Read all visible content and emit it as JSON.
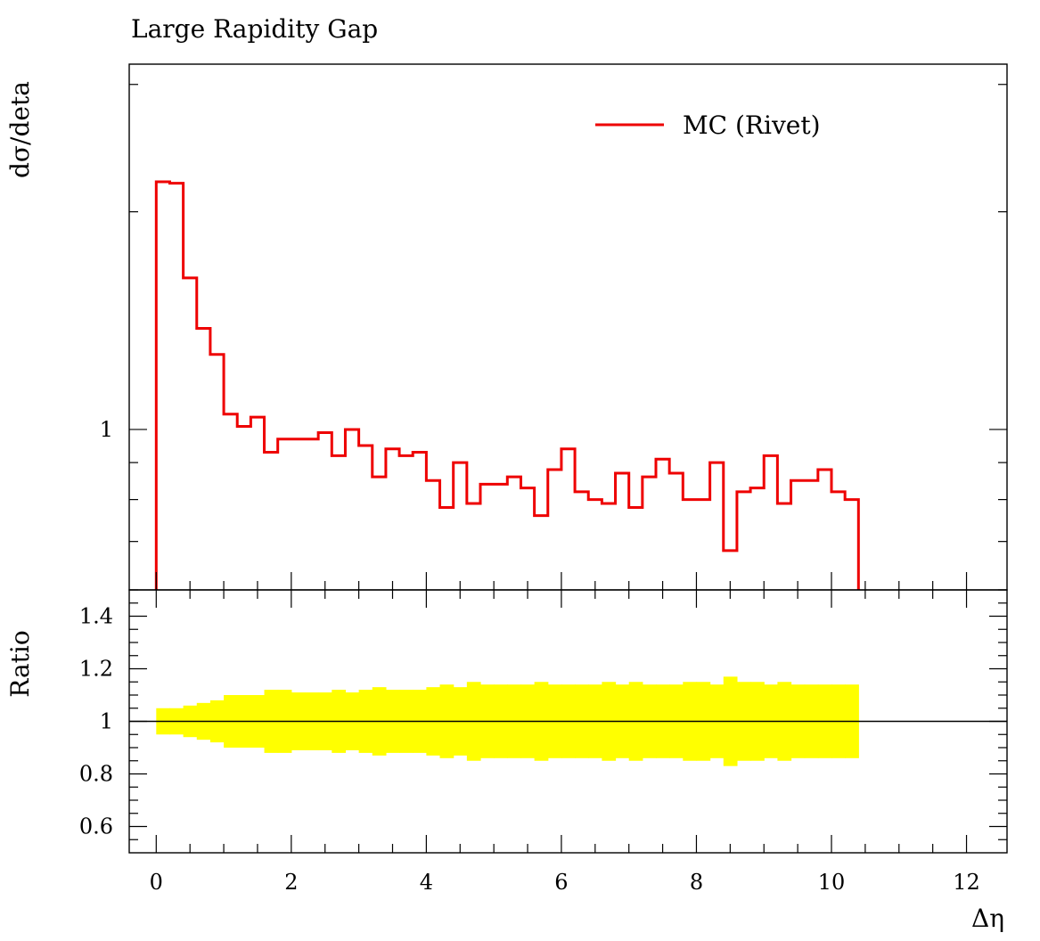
{
  "chart_data": {
    "type": "line",
    "title": "Large Rapidity Gap",
    "xlabel": "Δη",
    "ylabel": "dσ/deta",
    "ratio_ylabel": "Ratio",
    "xlim": [
      -0.4,
      12.6
    ],
    "ylim": [
      0.6,
      3.2
    ],
    "y_scale": "log",
    "ratio_ylim": [
      0.5,
      1.5
    ],
    "x_ticks": [
      "0",
      "2",
      "4",
      "6",
      "8",
      "10",
      "12"
    ],
    "x_tick_values": [
      0,
      2,
      4,
      6,
      8,
      10,
      12
    ],
    "y_ticks": [
      "1"
    ],
    "y_tick_values": [
      1
    ],
    "ratio_ticks": [
      "0.6",
      "0.8",
      "1",
      "1.2",
      "1.4"
    ],
    "ratio_tick_values": [
      0.6,
      0.8,
      1.0,
      1.2,
      1.4
    ],
    "legend_position": "top-right",
    "series": [
      {
        "name": "MC (Rivet)",
        "color": "#ee0000",
        "bin_edges": [
          0,
          0.2,
          0.4,
          0.6,
          0.8,
          1.0,
          1.2,
          1.4,
          1.6,
          1.8,
          2.0,
          2.2,
          2.4,
          2.6,
          2.8,
          3.0,
          3.2,
          3.4,
          3.6,
          3.8,
          4.0,
          4.2,
          4.4,
          4.6,
          4.8,
          5.0,
          5.2,
          5.4,
          5.6,
          5.8,
          6.0,
          6.2,
          6.4,
          6.6,
          6.8,
          7.0,
          7.2,
          7.4,
          7.6,
          7.8,
          8.0,
          8.2,
          8.4,
          8.6,
          8.8,
          9.0,
          9.2,
          9.4,
          9.6,
          9.8,
          10.0,
          10.2,
          10.4
        ],
        "values": [
          2.2,
          2.19,
          1.62,
          1.38,
          1.27,
          1.05,
          1.01,
          1.04,
          0.93,
          0.97,
          0.97,
          0.97,
          0.99,
          0.92,
          1.0,
          0.95,
          0.86,
          0.94,
          0.92,
          0.93,
          0.85,
          0.78,
          0.9,
          0.79,
          0.84,
          0.84,
          0.86,
          0.83,
          0.76,
          0.88,
          0.94,
          0.82,
          0.8,
          0.79,
          0.87,
          0.78,
          0.86,
          0.91,
          0.87,
          0.8,
          0.8,
          0.9,
          0.68,
          0.82,
          0.83,
          0.92,
          0.79,
          0.85,
          0.85,
          0.88,
          0.82,
          0.8
        ],
        "ratio_band_upper": [
          1.05,
          1.05,
          1.06,
          1.07,
          1.08,
          1.1,
          1.1,
          1.1,
          1.12,
          1.12,
          1.11,
          1.11,
          1.11,
          1.12,
          1.11,
          1.12,
          1.13,
          1.12,
          1.12,
          1.12,
          1.13,
          1.14,
          1.13,
          1.15,
          1.14,
          1.14,
          1.14,
          1.14,
          1.15,
          1.14,
          1.14,
          1.14,
          1.14,
          1.15,
          1.14,
          1.15,
          1.14,
          1.14,
          1.14,
          1.15,
          1.15,
          1.14,
          1.17,
          1.15,
          1.15,
          1.14,
          1.15,
          1.14,
          1.14,
          1.14,
          1.14,
          1.14
        ],
        "ratio_band_lower": [
          0.95,
          0.95,
          0.94,
          0.93,
          0.92,
          0.9,
          0.9,
          0.9,
          0.88,
          0.88,
          0.89,
          0.89,
          0.89,
          0.88,
          0.89,
          0.88,
          0.87,
          0.88,
          0.88,
          0.88,
          0.87,
          0.86,
          0.87,
          0.85,
          0.86,
          0.86,
          0.86,
          0.86,
          0.85,
          0.86,
          0.86,
          0.86,
          0.86,
          0.85,
          0.86,
          0.85,
          0.86,
          0.86,
          0.86,
          0.85,
          0.85,
          0.86,
          0.83,
          0.85,
          0.85,
          0.86,
          0.85,
          0.86,
          0.86,
          0.86,
          0.86,
          0.86
        ]
      }
    ],
    "ratio_band_color": "#ffff00",
    "ratio_line_color": "#000000"
  }
}
